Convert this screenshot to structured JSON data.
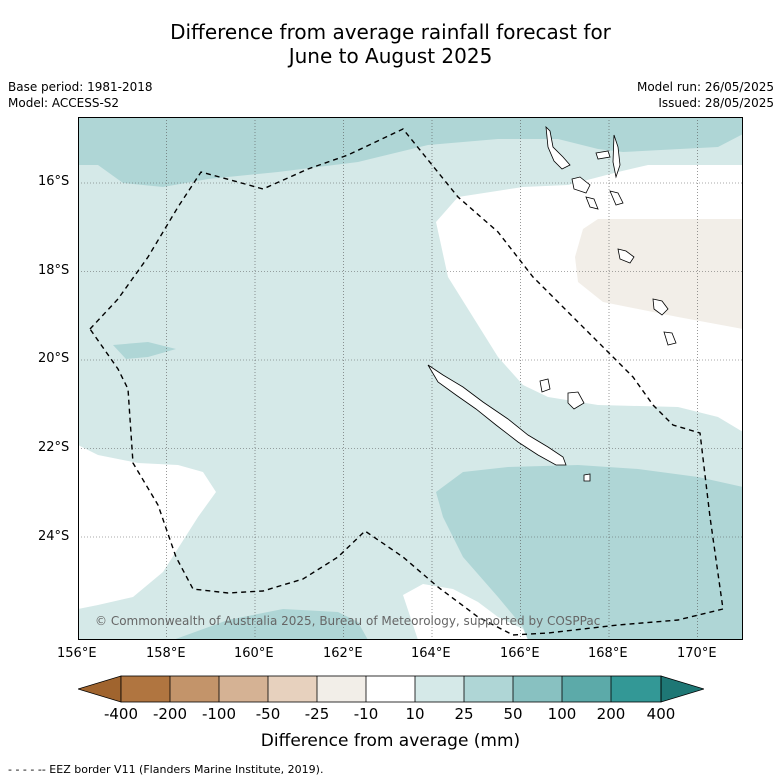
{
  "title_line1": "Difference from average rainfall forecast for",
  "title_line2": "June to August 2025",
  "meta": {
    "base_period": "Base period: 1981-2018",
    "model": "Model: ACCESS-S2",
    "model_run": "Model run: 26/05/2025",
    "issued": "Issued: 28/05/2025"
  },
  "map": {
    "lat_labels": [
      "16°S",
      "18°S",
      "20°S",
      "22°S",
      "24°S"
    ],
    "lon_labels": [
      "156°E",
      "158°E",
      "160°E",
      "162°E",
      "164°E",
      "166°E",
      "168°E",
      "170°E"
    ],
    "copyright": "© Commonwealth of Australia 2025, Bureau of Meteorology, supported by COSPPac",
    "colors": {
      "c10_25": "#d5e9e8",
      "c25_50": "#afd6d6",
      "cm25_m10": "#f2eee8",
      "neutral": "#ffffff",
      "eez": "#000000"
    }
  },
  "colorbar": {
    "labels": [
      "-400",
      "-200",
      "-100",
      "-50",
      "-25",
      "-10",
      "10",
      "25",
      "50",
      "100",
      "200",
      "400"
    ],
    "colors": [
      "#a0642e",
      "#b07540",
      "#c3946a",
      "#d5b294",
      "#e7d1be",
      "#f2eee8",
      "#ffffff",
      "#d5e9e8",
      "#afd6d6",
      "#88c1c1",
      "#5caaa9",
      "#339896",
      "#1e7775"
    ],
    "title": "Difference from average (mm)"
  },
  "footer": "- -  - - -- EEZ border V11 (Flanders Marine Institute, 2019)."
}
